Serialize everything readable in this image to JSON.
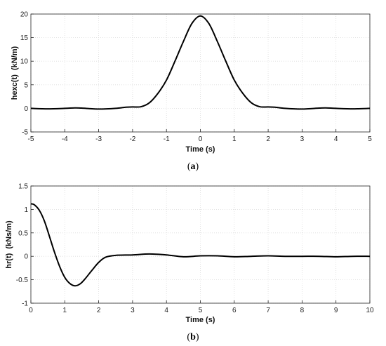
{
  "chart_data": [
    {
      "type": "line",
      "panel": "a",
      "xlabel": "Time (s)",
      "ylabel": "hexc(t)  (kN/m)",
      "xlim": [
        -5,
        5
      ],
      "ylim": [
        -5,
        20
      ],
      "xticks": [
        -5,
        -4,
        -3,
        -2,
        -1,
        0,
        1,
        2,
        3,
        4,
        5
      ],
      "yticks": [
        -5,
        0,
        5,
        10,
        15,
        20
      ],
      "grid": true,
      "series": [
        {
          "x": [
            -5,
            -4.5,
            -4,
            -3.7,
            -3.5,
            -3,
            -2.5,
            -2.2,
            -2,
            -1.75,
            -1.5,
            -1.25,
            -1,
            -0.75,
            -0.5,
            -0.25,
            0,
            0.25,
            0.5,
            0.75,
            1,
            1.25,
            1.5,
            1.75,
            2,
            2.2,
            2.5,
            3,
            3.5,
            3.7,
            4,
            4.5,
            5
          ],
          "y": [
            0,
            -0.1,
            0,
            0.1,
            0.05,
            -0.15,
            0,
            0.25,
            0.3,
            0.35,
            1.2,
            3.2,
            6.0,
            10.0,
            14.2,
            18.0,
            19.6,
            18.0,
            14.2,
            10.0,
            6.0,
            3.2,
            1.2,
            0.35,
            0.3,
            0.25,
            0,
            -0.15,
            0.05,
            0.1,
            0,
            -0.1,
            0
          ]
        }
      ]
    },
    {
      "type": "line",
      "panel": "b",
      "xlabel": "Time (s)",
      "ylabel": "hr(t)  (kNs/m)",
      "xlim": [
        0,
        10
      ],
      "ylim": [
        -1,
        1.5
      ],
      "xticks": [
        0,
        1,
        2,
        3,
        4,
        5,
        6,
        7,
        8,
        9,
        10
      ],
      "yticks": [
        -1,
        -0.5,
        0,
        0.5,
        1,
        1.5
      ],
      "grid": true,
      "series": [
        {
          "x": [
            0,
            0.1,
            0.25,
            0.4,
            0.55,
            0.7,
            0.85,
            1.0,
            1.15,
            1.3,
            1.45,
            1.6,
            1.8,
            2.0,
            2.2,
            2.5,
            3.0,
            3.5,
            4.0,
            4.5,
            5.0,
            5.5,
            6.0,
            6.5,
            7.0,
            7.5,
            8.0,
            8.5,
            9.0,
            9.5,
            10.0
          ],
          "y": [
            1.12,
            1.1,
            0.98,
            0.75,
            0.42,
            0.08,
            -0.22,
            -0.45,
            -0.58,
            -0.63,
            -0.59,
            -0.48,
            -0.3,
            -0.13,
            -0.02,
            0.02,
            0.03,
            0.05,
            0.03,
            -0.01,
            0.01,
            0.01,
            -0.01,
            0.0,
            0.01,
            0.0,
            0.0,
            0.0,
            -0.01,
            0.0,
            0.0
          ]
        }
      ]
    }
  ],
  "captions": {
    "a_open": "(",
    "a_letter": "a",
    "a_close": ")",
    "b_open": "(",
    "b_letter": "b",
    "b_close": ")"
  }
}
